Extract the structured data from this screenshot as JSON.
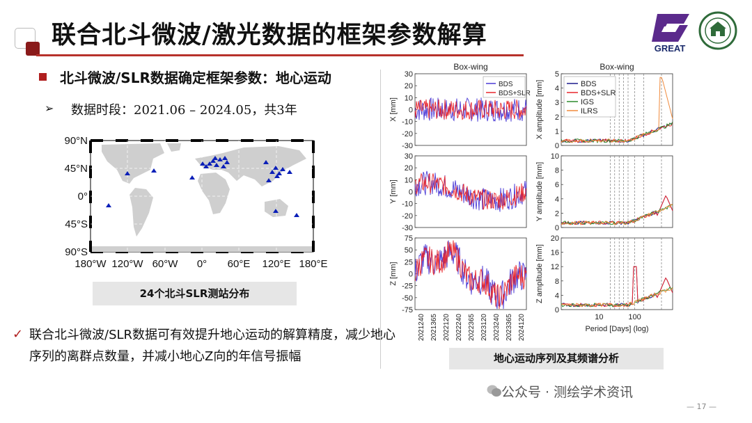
{
  "header": {
    "title": "联合北斗微波/激光数据的框架参数解算",
    "logo_text": "GREAT"
  },
  "bullets": {
    "main": "北斗微波/SLR数据确定框架参数：地心运动",
    "period": "数据时段：2021.06 – 2024.05，共3年"
  },
  "map": {
    "caption": "24个北斗SLR测站分布",
    "lat_labels": [
      "90°N",
      "45°N",
      "0°",
      "45°S",
      "90°S"
    ],
    "lon_labels": [
      "180°W",
      "120°W",
      "60°W",
      "0°",
      "60°E",
      "120°E",
      "180°E"
    ],
    "station_count": 24,
    "marker_color": "#0b1fb8"
  },
  "summary": "联合北斗微波/SLR数据可有效提升地心运动的解算精度，减少地心序列的离群点数量，并减小地心Z向的年信号振幅",
  "charts_caption": "地心运动序列及其频谱分析",
  "watermark": "公众号 · 测绘学术资讯",
  "page_number": "— 17 —",
  "chart_data": [
    {
      "type": "line",
      "title": "Box-wing",
      "panel": "X",
      "ylabel": "X [mm]",
      "ylim": [
        -30,
        30
      ],
      "yticks": [
        30,
        20,
        10,
        0,
        -10,
        -20,
        -30
      ],
      "series": [
        {
          "name": "BDS",
          "color": "#4a3ad6"
        },
        {
          "name": "BDS+SLR",
          "color": "#e8262c"
        }
      ]
    },
    {
      "type": "line",
      "panel": "Y",
      "ylabel": "Y [mm]",
      "ylim": [
        -30,
        30
      ],
      "yticks": [
        30,
        20,
        10,
        0,
        -10,
        -20,
        -30
      ]
    },
    {
      "type": "line",
      "panel": "Z",
      "ylabel": "Z [mm]",
      "ylim": [
        -75,
        75
      ],
      "yticks": [
        75,
        50,
        25,
        0,
        -25,
        -50,
        -75
      ],
      "xticks": [
        "2021240",
        "2021365",
        "2022120",
        "2022240",
        "2022365",
        "2023120",
        "2023240",
        "2023365",
        "2024120"
      ]
    },
    {
      "type": "line",
      "title": "Box-wing",
      "panel": "X amplitude",
      "ylabel": "X amplitude [mm]",
      "ylim": [
        0,
        5
      ],
      "yticks": [
        5,
        4,
        3,
        2,
        1,
        0
      ],
      "series": [
        {
          "name": "BDS",
          "color": "#1c1a8c"
        },
        {
          "name": "BDS+SLR",
          "color": "#e8262c"
        },
        {
          "name": "IGS",
          "color": "#2e8b2e"
        },
        {
          "name": "ILRS",
          "color": "#f08a3c"
        }
      ]
    },
    {
      "type": "line",
      "panel": "Y amplitude",
      "ylabel": "Y amplitude [mm]",
      "ylim": [
        0,
        10
      ],
      "yticks": [
        10,
        8,
        6,
        4,
        2,
        0
      ]
    },
    {
      "type": "line",
      "panel": "Z amplitude",
      "ylabel": "Z amplitude [mm]",
      "ylim": [
        0,
        20
      ],
      "yticks": [
        20,
        16,
        12,
        8,
        4,
        0
      ],
      "xlabel": "Period [Days] (log)",
      "xticks": [
        "10",
        "100"
      ]
    }
  ]
}
